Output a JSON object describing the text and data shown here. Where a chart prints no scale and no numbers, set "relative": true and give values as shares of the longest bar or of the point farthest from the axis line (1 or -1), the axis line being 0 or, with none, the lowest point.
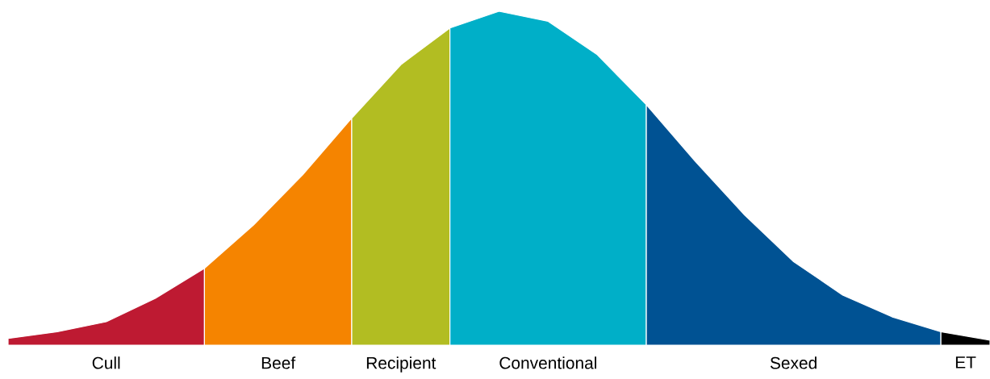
{
  "chart_data": {
    "type": "area",
    "relative": true,
    "categories": [
      null,
      null,
      null,
      null,
      null,
      null,
      null,
      null,
      null,
      null,
      null,
      null,
      null,
      null,
      null,
      null,
      null,
      null,
      null,
      null,
      null
    ],
    "series": [
      {
        "name": "Cull",
        "color": "#be1a32",
        "values": [
          0.02,
          0.04,
          0.07,
          0.14,
          0.23,
          null,
          null,
          null,
          null,
          null,
          null,
          null,
          null,
          null,
          null,
          null,
          null,
          null,
          null,
          null,
          null
        ]
      },
      {
        "name": "Beef",
        "color": "#f58400",
        "values": [
          null,
          null,
          null,
          null,
          0.23,
          0.36,
          0.51,
          0.68,
          null,
          null,
          null,
          null,
          null,
          null,
          null,
          null,
          null,
          null,
          null,
          null,
          null
        ]
      },
      {
        "name": "Recipient",
        "color": "#b2bd22",
        "values": [
          null,
          null,
          null,
          null,
          null,
          null,
          null,
          0.68,
          0.84,
          0.95,
          null,
          null,
          null,
          null,
          null,
          null,
          null,
          null,
          null,
          null,
          null
        ]
      },
      {
        "name": "Conventional",
        "color": "#00afc8",
        "values": [
          null,
          null,
          null,
          null,
          null,
          null,
          null,
          null,
          null,
          0.95,
          1,
          0.97,
          0.87,
          0.72,
          null,
          null,
          null,
          null,
          null,
          null,
          null
        ]
      },
      {
        "name": "Sexed",
        "color": "#005293",
        "values": [
          null,
          null,
          null,
          null,
          null,
          null,
          null,
          null,
          null,
          null,
          null,
          null,
          null,
          0.72,
          0.55,
          0.39,
          0.25,
          0.15,
          0.085,
          0.04,
          null
        ]
      },
      {
        "name": "ET",
        "color": "#000000",
        "values": [
          null,
          null,
          null,
          null,
          null,
          null,
          null,
          null,
          null,
          null,
          null,
          null,
          null,
          null,
          null,
          null,
          null,
          null,
          null,
          0.04,
          0.015
        ]
      }
    ]
  }
}
